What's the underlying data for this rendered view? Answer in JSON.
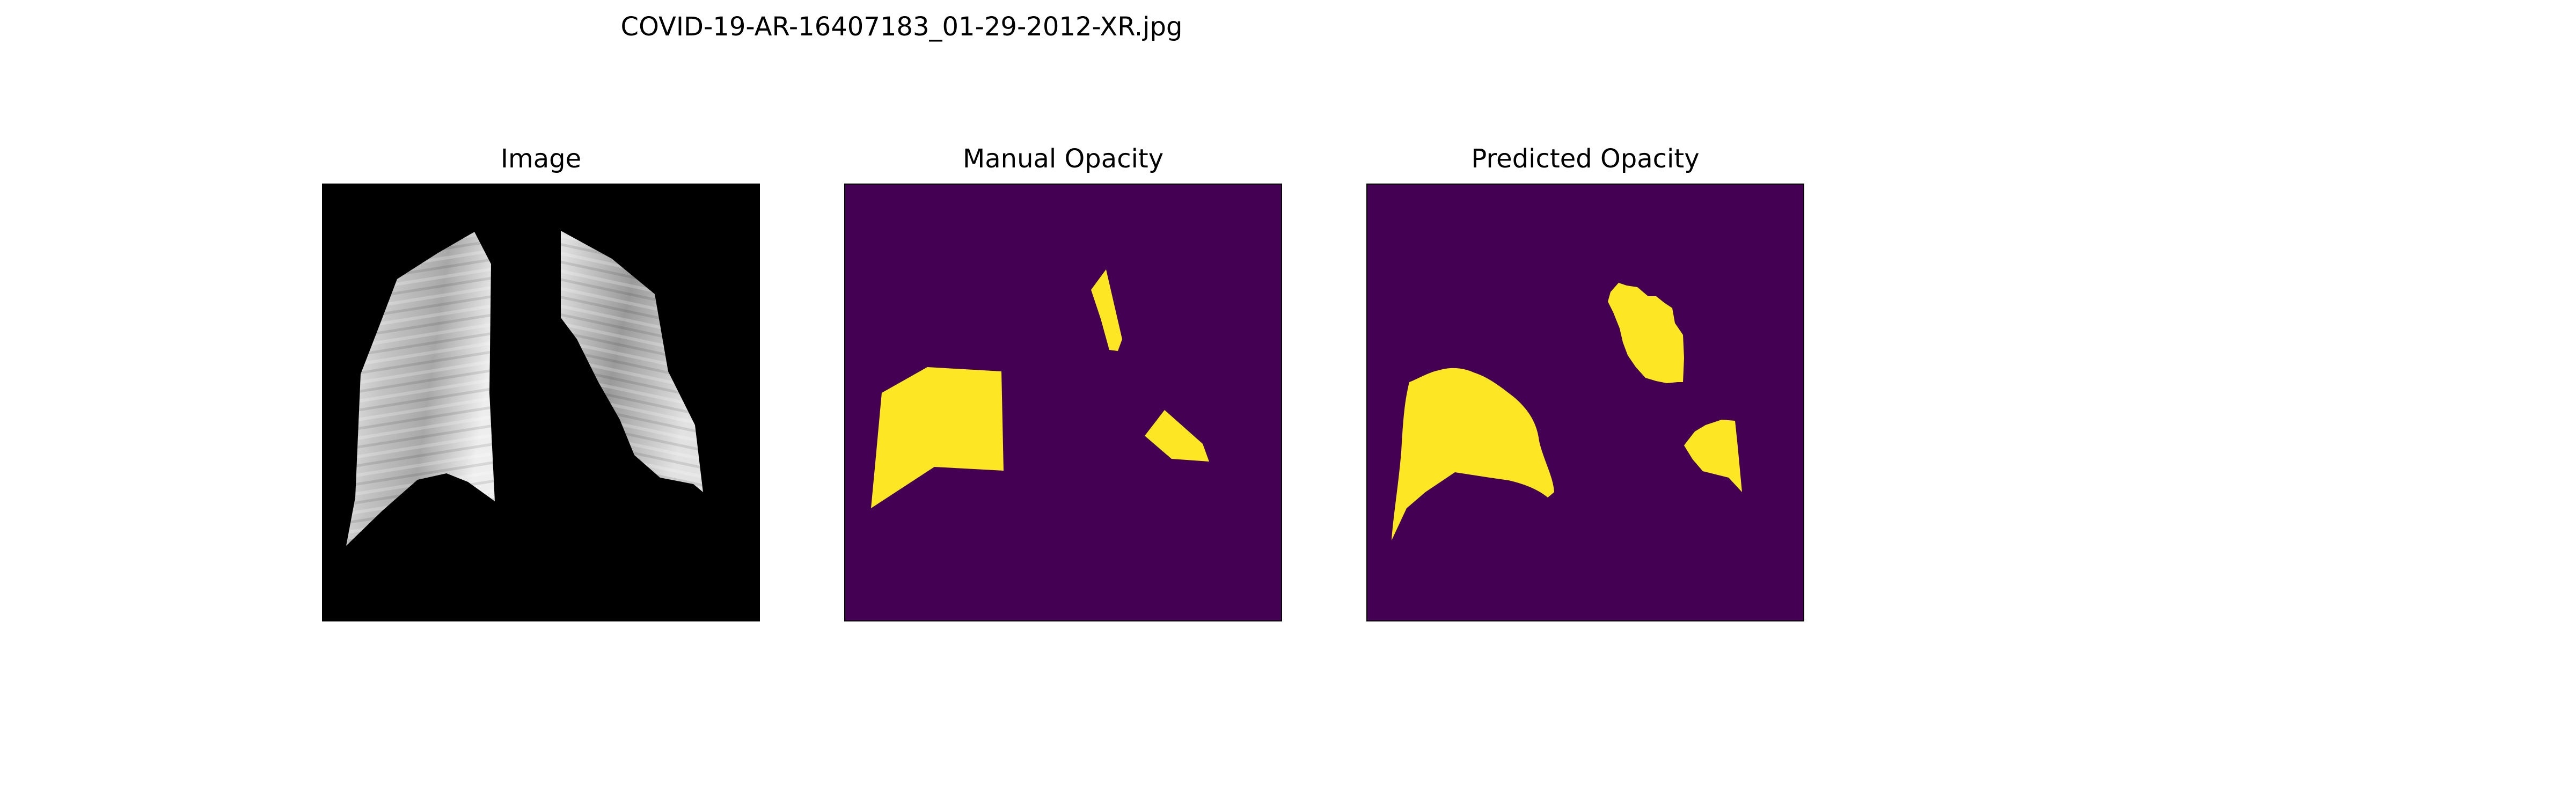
{
  "figure": {
    "title": "COVID-19-AR-16407183_01-29-2012-XR.jpg"
  },
  "panels": [
    {
      "title": "Image",
      "content": "chest x-ray, lung fields segmented on black background"
    },
    {
      "title": "Manual Opacity",
      "content": "binary opacity mask, 3 regions"
    },
    {
      "title": "Predicted Opacity",
      "content": "binary opacity mask, 3 regions"
    }
  ],
  "colors": {
    "xray_background": "#000000",
    "mask_background": "#440154",
    "mask_foreground": "#fde725",
    "frame": "#000000"
  }
}
